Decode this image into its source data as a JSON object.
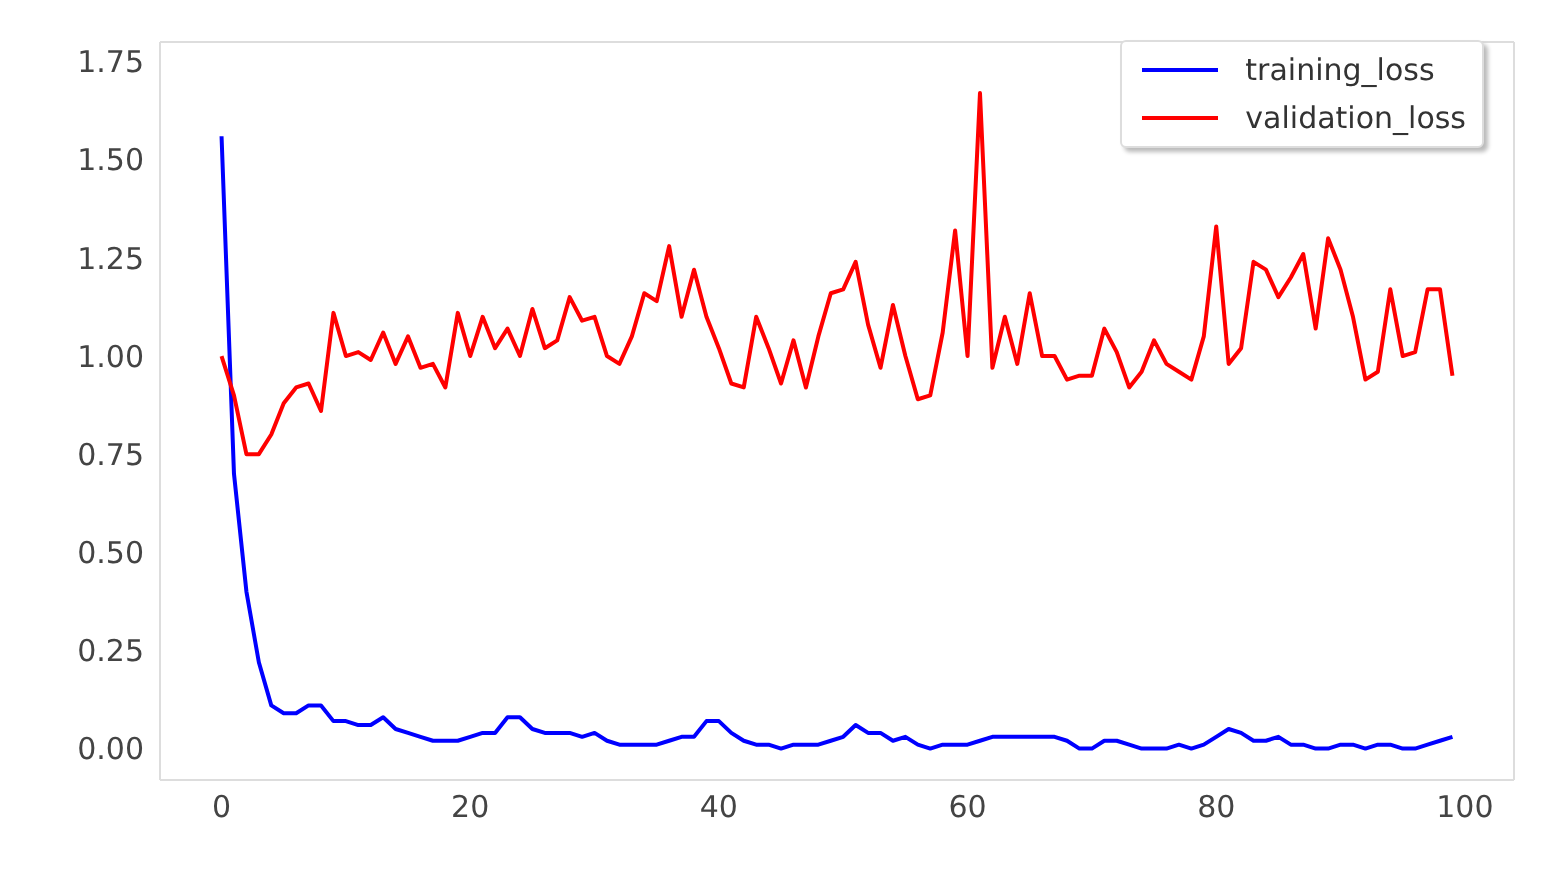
{
  "chart_data": {
    "type": "line",
    "x": [
      0,
      1,
      2,
      3,
      4,
      5,
      6,
      7,
      8,
      9,
      10,
      11,
      12,
      13,
      14,
      15,
      16,
      17,
      18,
      19,
      20,
      21,
      22,
      23,
      24,
      25,
      26,
      27,
      28,
      29,
      30,
      31,
      32,
      33,
      34,
      35,
      36,
      37,
      38,
      39,
      40,
      41,
      42,
      43,
      44,
      45,
      46,
      47,
      48,
      49,
      50,
      51,
      52,
      53,
      54,
      55,
      56,
      57,
      58,
      59,
      60,
      61,
      62,
      63,
      64,
      65,
      66,
      67,
      68,
      69,
      70,
      71,
      72,
      73,
      74,
      75,
      76,
      77,
      78,
      79,
      80,
      81,
      82,
      83,
      84,
      85,
      86,
      87,
      88,
      89,
      90,
      91,
      92,
      93,
      94,
      95,
      96,
      97,
      98,
      99
    ],
    "series": [
      {
        "name": "training_loss",
        "color": "#0000ff",
        "values": [
          1.56,
          0.7,
          0.4,
          0.22,
          0.11,
          0.09,
          0.09,
          0.11,
          0.11,
          0.07,
          0.07,
          0.06,
          0.06,
          0.08,
          0.05,
          0.04,
          0.03,
          0.02,
          0.02,
          0.02,
          0.03,
          0.04,
          0.04,
          0.08,
          0.08,
          0.05,
          0.04,
          0.04,
          0.04,
          0.03,
          0.04,
          0.02,
          0.01,
          0.01,
          0.01,
          0.01,
          0.02,
          0.03,
          0.03,
          0.07,
          0.07,
          0.04,
          0.02,
          0.01,
          0.01,
          0.0,
          0.01,
          0.01,
          0.01,
          0.02,
          0.03,
          0.06,
          0.04,
          0.04,
          0.02,
          0.03,
          0.01,
          0.0,
          0.01,
          0.01,
          0.01,
          0.02,
          0.03,
          0.03,
          0.03,
          0.03,
          0.03,
          0.03,
          0.02,
          0.0,
          0.0,
          0.02,
          0.02,
          0.01,
          0.0,
          0.0,
          0.0,
          0.01,
          0.0,
          0.01,
          0.03,
          0.05,
          0.04,
          0.02,
          0.02,
          0.03,
          0.01,
          0.01,
          0.0,
          0.0,
          0.01,
          0.01,
          0.0,
          0.01,
          0.01,
          0.0,
          0.0,
          0.01,
          0.02,
          0.03
        ]
      },
      {
        "name": "validation_loss",
        "color": "#ff0000",
        "values": [
          1.0,
          0.9,
          0.75,
          0.75,
          0.8,
          0.88,
          0.92,
          0.93,
          0.86,
          1.11,
          1.0,
          1.01,
          0.99,
          1.06,
          0.98,
          1.05,
          0.97,
          0.98,
          0.92,
          1.11,
          1.0,
          1.1,
          1.02,
          1.07,
          1.0,
          1.12,
          1.02,
          1.04,
          1.15,
          1.09,
          1.1,
          1.0,
          0.98,
          1.05,
          1.16,
          1.14,
          1.28,
          1.1,
          1.22,
          1.1,
          1.02,
          0.93,
          0.92,
          1.1,
          1.02,
          0.93,
          1.04,
          0.92,
          1.05,
          1.16,
          1.17,
          1.24,
          1.08,
          0.97,
          1.13,
          1.0,
          0.89,
          0.9,
          1.06,
          1.32,
          1.0,
          1.67,
          0.97,
          1.1,
          0.98,
          1.16,
          1.0,
          1.0,
          0.94,
          0.95,
          0.95,
          1.07,
          1.01,
          0.92,
          0.96,
          1.04,
          0.98,
          0.96,
          0.94,
          1.05,
          1.33,
          0.98,
          1.02,
          1.24,
          1.22,
          1.15,
          1.2,
          1.26,
          1.07,
          1.3,
          1.22,
          1.1,
          0.94,
          0.96,
          1.17,
          1.0,
          1.01,
          1.17,
          1.17,
          0.95
        ]
      }
    ],
    "xlim": [
      -4.95,
      103.95
    ],
    "xticks": [
      0,
      20,
      40,
      60,
      80,
      100
    ],
    "ylim": [
      -0.08,
      1.8
    ],
    "yticks": [
      {
        "value": 0,
        "label": "0.00"
      },
      0.25,
      {
        "value": 0.5,
        "label": "0.50"
      },
      0.75,
      {
        "value": 1,
        "label": "1.00"
      },
      1.25,
      {
        "value": 1.5,
        "label": "1.50"
      },
      1.75
    ],
    "grid": false,
    "legend": "top right",
    "marker": "none",
    "line_style": "solid"
  }
}
